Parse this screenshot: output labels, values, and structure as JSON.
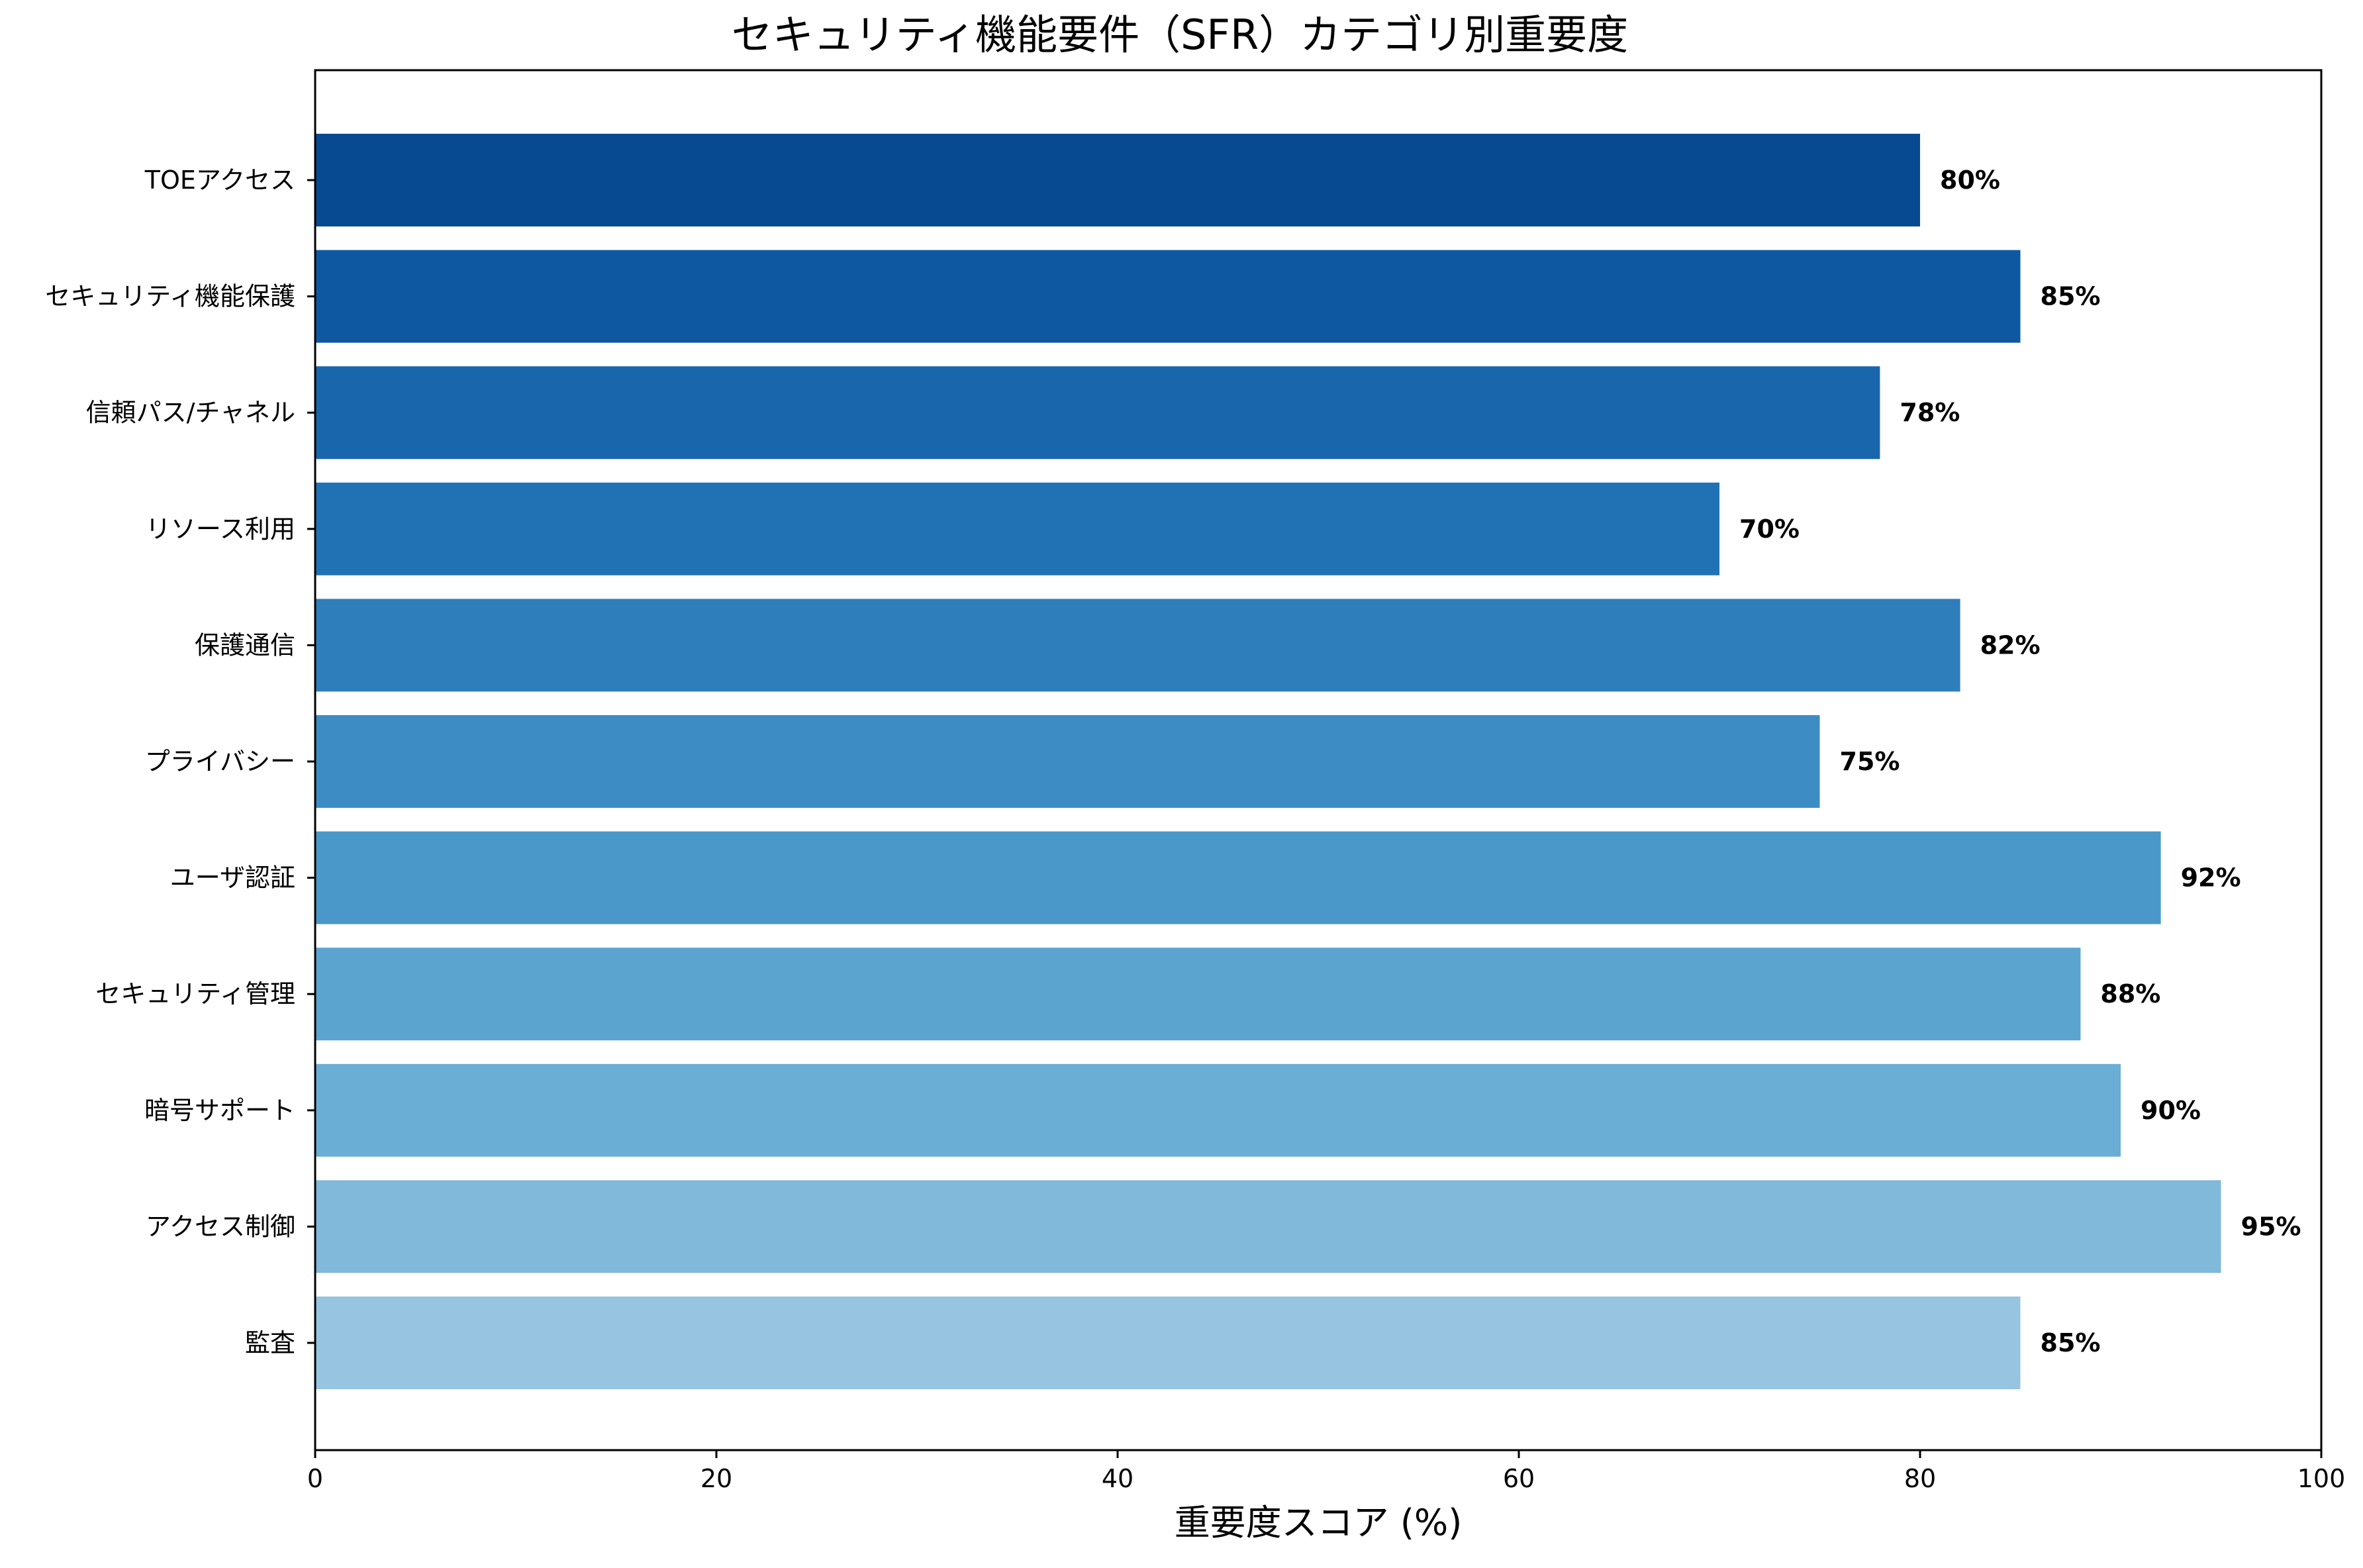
{
  "chart_data": {
    "type": "bar",
    "orientation": "horizontal",
    "title": "セキュリティ機能要件（SFR）カテゴリ別重要度",
    "xlabel": "重要度スコア (%)",
    "ylabel": "",
    "xlim": [
      0,
      100
    ],
    "xticks": [
      0,
      20,
      40,
      60,
      80,
      100
    ],
    "grid": false,
    "categories": [
      "TOEアクセス",
      "セキュリティ機能保護",
      "信頼パス/チャネル",
      "リソース利用",
      "保護通信",
      "プライバシー",
      "ユーザ認証",
      "セキュリティ管理",
      "暗号サポート",
      "アクセス制御",
      "監査"
    ],
    "values": [
      80,
      85,
      78,
      70,
      82,
      75,
      92,
      88,
      90,
      95,
      85
    ],
    "value_labels": [
      "80%",
      "85%",
      "78%",
      "70%",
      "82%",
      "75%",
      "92%",
      "88%",
      "90%",
      "95%",
      "85%"
    ],
    "colors": [
      "#084a91",
      "#0e58a2",
      "#1966ad",
      "#2171b5",
      "#2f7ebc",
      "#3d8dc4",
      "#4a98c9",
      "#5ca4d0",
      "#6aaed6",
      "#80b9da",
      "#97c4e0"
    ]
  }
}
